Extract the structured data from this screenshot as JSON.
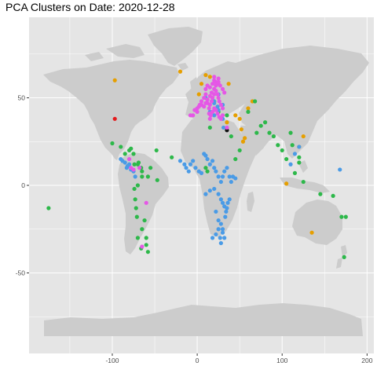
{
  "title": "PCA Clusters on Date: 2020-12-28",
  "chart_data": {
    "type": "scatter",
    "title": "PCA Clusters on Date: 2020-12-28",
    "xlabel": "",
    "ylabel": "",
    "xlim": [
      -198,
      208
    ],
    "ylim": [
      -96,
      96
    ],
    "x_ticks": [
      -100,
      0,
      100,
      200
    ],
    "y_ticks": [
      -50,
      0,
      50
    ],
    "x_tick_labels": [
      "-100",
      "0",
      "100",
      "200"
    ],
    "y_tick_labels": [
      "-50",
      "0",
      "50"
    ],
    "grid": true,
    "legend": "none",
    "colors": {
      "panel": "#e5e5e5",
      "grid": "#ffffff",
      "land": "#cccccc",
      "cluster_red": "#e41a1c",
      "cluster_orange": "#e69f00",
      "cluster_green": "#2db84a",
      "cluster_blue": "#4a9be6",
      "cluster_magenta": "#e557e6",
      "cluster_black": "#111111"
    },
    "series": [
      {
        "color": "#e41a1c",
        "x": [
          -97
        ],
        "y": [
          38
        ]
      },
      {
        "color": "#111111",
        "x": [
          35
        ],
        "y": [
          31.5
        ]
      },
      {
        "color": "#e69f00",
        "x": [
          -97,
          -20,
          5,
          10,
          15,
          2,
          20,
          37,
          45,
          50,
          52,
          54,
          56,
          35,
          60,
          65,
          105,
          120,
          135,
          125
        ],
        "y": [
          60,
          65,
          58,
          63,
          62,
          52,
          48,
          58,
          40,
          38,
          32,
          25,
          27,
          36,
          44,
          48,
          1,
          22,
          -27,
          28
        ]
      },
      {
        "color": "#2db84a",
        "x": [
          -175,
          -100,
          -90,
          -85,
          -80,
          -78,
          -75,
          -74,
          -70,
          -69,
          -66,
          -65,
          -65,
          -70,
          -74,
          -73,
          -72,
          -71,
          -65,
          -62,
          -58,
          -58,
          -55,
          -48,
          -47,
          -60,
          -60,
          -66,
          -70,
          -30,
          10,
          12,
          15,
          25,
          35,
          40,
          45,
          50,
          60,
          68,
          70,
          75,
          80,
          85,
          90,
          95,
          100,
          105,
          110,
          112,
          115,
          120,
          120,
          125,
          145,
          160,
          170,
          175,
          173
        ],
        "y": [
          -13,
          24,
          22,
          18,
          20,
          21,
          18,
          12,
          12,
          13,
          10,
          8,
          5,
          0,
          -2,
          -8,
          -13,
          -18,
          -25,
          -20,
          -38,
          5,
          10,
          20,
          3,
          -30,
          -34,
          -36,
          -30,
          16,
          10,
          8,
          33,
          42,
          40,
          28,
          15,
          20,
          42,
          48,
          30,
          34,
          36,
          30,
          28,
          23,
          20,
          15,
          30,
          23,
          7,
          13,
          16,
          2,
          -5,
          -6,
          -18,
          -18,
          -41
        ]
      },
      {
        "color": "#4a9be6",
        "x": [
          -90,
          -88,
          -85,
          -83,
          -82,
          -80,
          -78,
          -75,
          -73,
          -20,
          -15,
          -13,
          -10,
          -8,
          -5,
          -2,
          2,
          5,
          8,
          10,
          12,
          15,
          18,
          20,
          22,
          25,
          28,
          30,
          32,
          35,
          38,
          40,
          42,
          45,
          10,
          15,
          20,
          25,
          28,
          30,
          32,
          34,
          36,
          38,
          22,
          25,
          28,
          30,
          33,
          35,
          18,
          22,
          25,
          27,
          28,
          30,
          32,
          31,
          24,
          20,
          10,
          15,
          20,
          25,
          30,
          18,
          20,
          25,
          30,
          110,
          115,
          120,
          168
        ],
        "y": [
          15,
          14,
          13,
          10,
          11,
          12,
          9,
          8,
          5,
          14,
          12,
          10,
          8,
          12,
          14,
          10,
          8,
          7,
          18,
          17,
          15,
          12,
          14,
          10,
          8,
          5,
          2,
          5,
          8,
          10,
          5,
          2,
          5,
          4,
          -5,
          -3,
          -2,
          -5,
          -8,
          -10,
          -12,
          -15,
          -10,
          -8,
          -15,
          -20,
          -22,
          -25,
          -18,
          -13,
          -30,
          -28,
          -25,
          -30,
          -33,
          -27,
          -30,
          33,
          45,
          48,
          50,
          42,
          40,
          43,
          38,
          42,
          47,
          52,
          46,
          12,
          18,
          22,
          9
        ]
      },
      {
        "color": "#e557e6",
        "x": [
          -78,
          -80,
          -65,
          -60,
          -75,
          -68,
          -5,
          0,
          2,
          5,
          8,
          10,
          12,
          14,
          15,
          17,
          18,
          20,
          22,
          24,
          25,
          26,
          28,
          30,
          10,
          12,
          15,
          18,
          20,
          22,
          25,
          27,
          30,
          32,
          14,
          16,
          18,
          20,
          22,
          24,
          26,
          28,
          30,
          5,
          8,
          10,
          12,
          15,
          17,
          20,
          22,
          25,
          -3,
          0,
          3,
          -8,
          20,
          25,
          35,
          15
        ],
        "y": [
          10,
          15,
          -35,
          -10,
          9,
          10,
          40,
          42,
          45,
          48,
          50,
          52,
          47,
          44,
          46,
          48,
          50,
          52,
          54,
          52,
          50,
          48,
          46,
          44,
          55,
          57,
          56,
          58,
          60,
          59,
          58,
          57,
          55,
          53,
          41,
          40,
          42,
          44,
          43,
          41,
          39,
          38,
          40,
          46,
          45,
          47,
          49,
          51,
          53,
          55,
          57,
          59,
          43,
          44,
          46,
          40,
          62,
          61,
          33,
          38
        ]
      }
    ]
  }
}
